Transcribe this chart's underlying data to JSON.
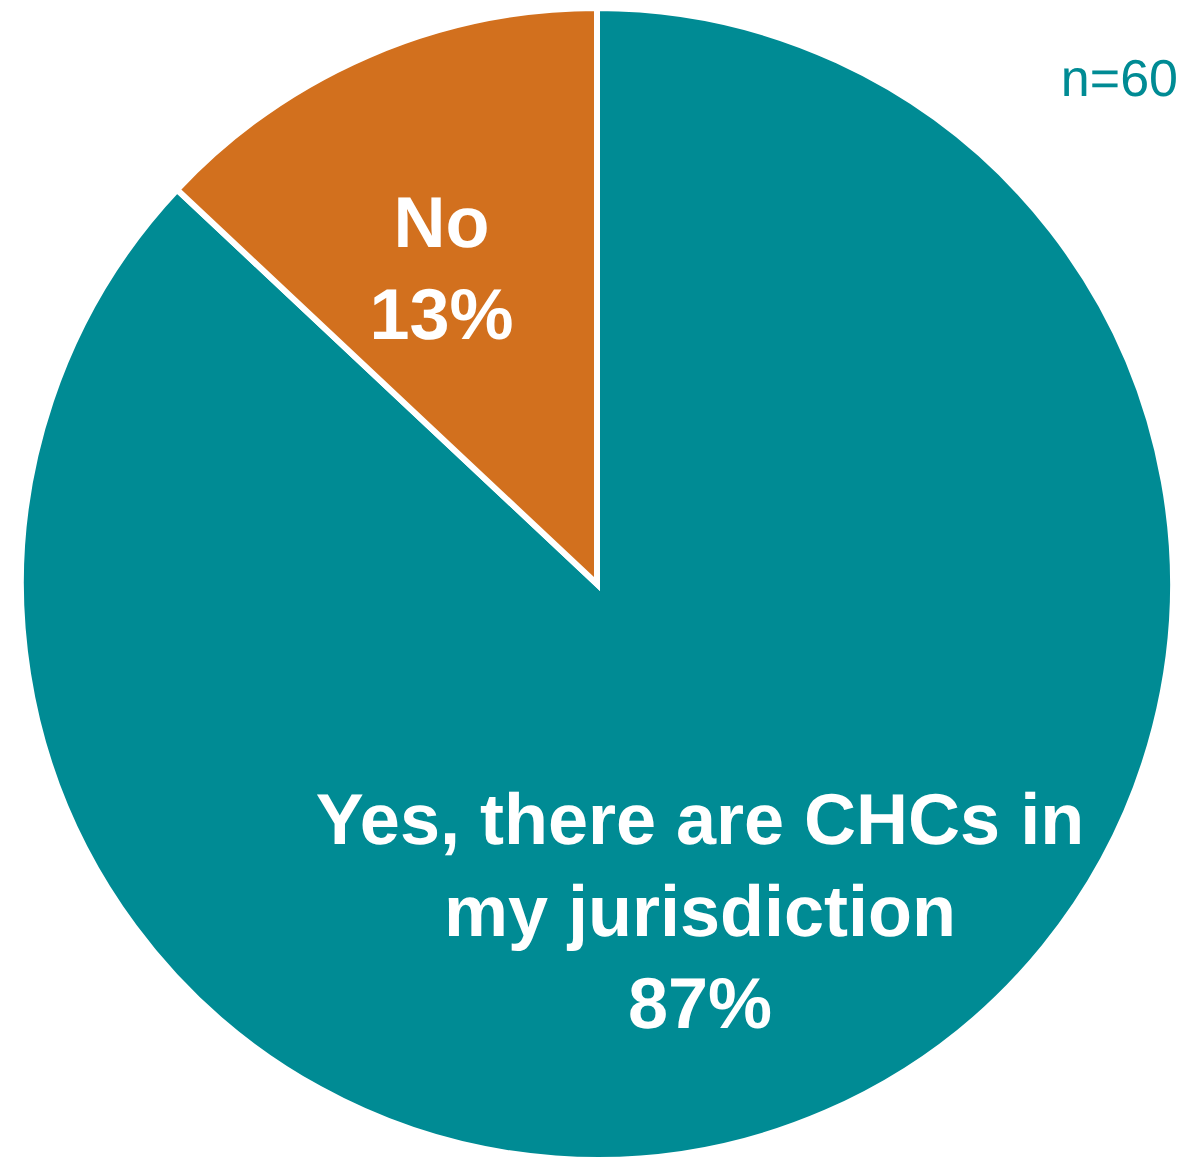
{
  "chart_data": {
    "type": "pie",
    "categories": [
      "Yes, there are CHCs in my jurisdiction",
      "No"
    ],
    "values": [
      87,
      13
    ],
    "colors": [
      "#008b94",
      "#d2701e"
    ],
    "value_labels": [
      "87%",
      "13%"
    ],
    "annotations": [
      "n=60"
    ]
  }
}
